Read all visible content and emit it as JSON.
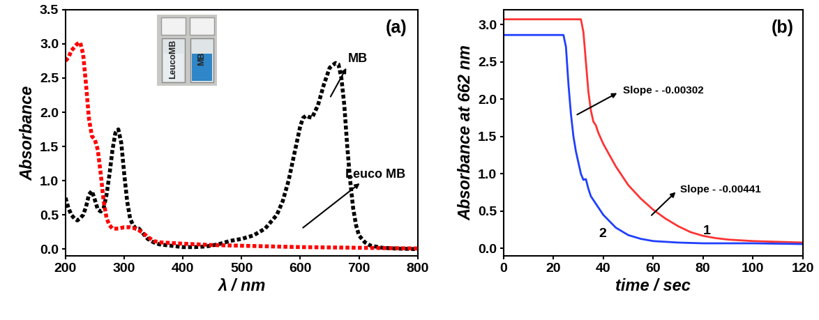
{
  "chart_data": [
    {
      "type": "line",
      "title": "(a)",
      "x_label": "λ / nm",
      "y_label": "Absorbance",
      "xlim": [
        200,
        800
      ],
      "xticks": [
        200,
        300,
        400,
        500,
        600,
        700,
        800
      ],
      "ylim": [
        -0.1,
        3.5
      ],
      "yticks": [
        0.0,
        0.5,
        1.0,
        1.5,
        2.0,
        2.5,
        3.0,
        3.5
      ],
      "grid": false,
      "series": [
        {
          "name": "MB",
          "color": "#000000",
          "line_style": "dotted",
          "x": [
            200,
            205,
            210,
            215,
            220,
            225,
            230,
            235,
            240,
            245,
            250,
            255,
            260,
            265,
            270,
            275,
            280,
            285,
            290,
            295,
            300,
            305,
            310,
            315,
            320,
            325,
            330,
            340,
            350,
            360,
            380,
            400,
            420,
            440,
            460,
            480,
            500,
            520,
            540,
            560,
            570,
            580,
            590,
            600,
            605,
            610,
            615,
            620,
            630,
            640,
            650,
            660,
            665,
            670,
            675,
            680,
            685,
            690,
            695,
            700,
            710,
            720,
            740,
            760,
            800
          ],
          "values": [
            0.75,
            0.6,
            0.5,
            0.45,
            0.42,
            0.45,
            0.5,
            0.62,
            0.8,
            0.85,
            0.72,
            0.58,
            0.55,
            0.6,
            0.8,
            1.1,
            1.45,
            1.7,
            1.75,
            1.55,
            1.1,
            0.7,
            0.45,
            0.35,
            0.3,
            0.3,
            0.25,
            0.15,
            0.1,
            0.07,
            0.05,
            0.03,
            0.03,
            0.04,
            0.07,
            0.12,
            0.15,
            0.2,
            0.3,
            0.5,
            0.7,
            1.0,
            1.4,
            1.8,
            1.92,
            1.95,
            1.93,
            1.92,
            2.1,
            2.4,
            2.65,
            2.72,
            2.7,
            2.5,
            2.1,
            1.5,
            1.0,
            0.6,
            0.35,
            0.2,
            0.1,
            0.05,
            0.02,
            0.01,
            0.0
          ]
        },
        {
          "name": "Leuco MB",
          "color": "#ff0000",
          "line_style": "dotted",
          "x": [
            200,
            205,
            210,
            215,
            220,
            225,
            230,
            235,
            240,
            245,
            250,
            255,
            260,
            265,
            270,
            275,
            280,
            290,
            300,
            310,
            320,
            330,
            340,
            350,
            360,
            400,
            450,
            500,
            600,
            700,
            800
          ],
          "values": [
            2.75,
            2.8,
            2.9,
            2.95,
            3.0,
            3.02,
            2.85,
            2.4,
            1.9,
            1.65,
            1.6,
            1.45,
            1.1,
            0.7,
            0.45,
            0.35,
            0.3,
            0.3,
            0.32,
            0.32,
            0.3,
            0.25,
            0.18,
            0.12,
            0.1,
            0.08,
            0.06,
            0.05,
            0.03,
            0.02,
            0.01
          ]
        }
      ],
      "annotations": [
        {
          "text": "MB"
        },
        {
          "text": "Leuco MB"
        }
      ],
      "inset": {
        "labels": [
          "LeucoMB",
          "MB"
        ]
      }
    },
    {
      "type": "line",
      "title": "(b)",
      "x_label": "time / sec",
      "y_label": "Absorbance at 662 nm",
      "xlim": [
        0,
        120
      ],
      "xticks": [
        0,
        20,
        40,
        60,
        80,
        100,
        120
      ],
      "ylim": [
        -0.1,
        3.2
      ],
      "yticks": [
        0.0,
        0.5,
        1.0,
        1.5,
        2.0,
        2.5,
        3.0
      ],
      "grid": false,
      "series": [
        {
          "name": "1",
          "color": "#ff3333",
          "line_style": "solid",
          "x": [
            0,
            30,
            31,
            32,
            33,
            34,
            35,
            36,
            37,
            38,
            40,
            45,
            50,
            55,
            60,
            65,
            70,
            75,
            80,
            85,
            90,
            100,
            110,
            120
          ],
          "values": [
            3.07,
            3.07,
            3.07,
            2.9,
            2.5,
            2.1,
            1.85,
            1.7,
            1.65,
            1.55,
            1.4,
            1.1,
            0.85,
            0.67,
            0.52,
            0.4,
            0.3,
            0.22,
            0.17,
            0.14,
            0.12,
            0.1,
            0.09,
            0.08
          ]
        },
        {
          "name": "2",
          "color": "#1f3fff",
          "line_style": "solid",
          "x": [
            0,
            24,
            25,
            26,
            27,
            28,
            29,
            30,
            31,
            32,
            33,
            34,
            35,
            37,
            40,
            45,
            50,
            55,
            60,
            70,
            80,
            100,
            120
          ],
          "values": [
            2.86,
            2.86,
            2.7,
            2.2,
            1.8,
            1.5,
            1.3,
            1.15,
            1.0,
            0.92,
            0.93,
            0.8,
            0.7,
            0.6,
            0.45,
            0.28,
            0.18,
            0.13,
            0.1,
            0.08,
            0.07,
            0.07,
            0.06
          ]
        }
      ],
      "annotations": [
        {
          "text": "Slope - -0.00302"
        },
        {
          "text": "Slope - -0.00441"
        }
      ]
    }
  ]
}
